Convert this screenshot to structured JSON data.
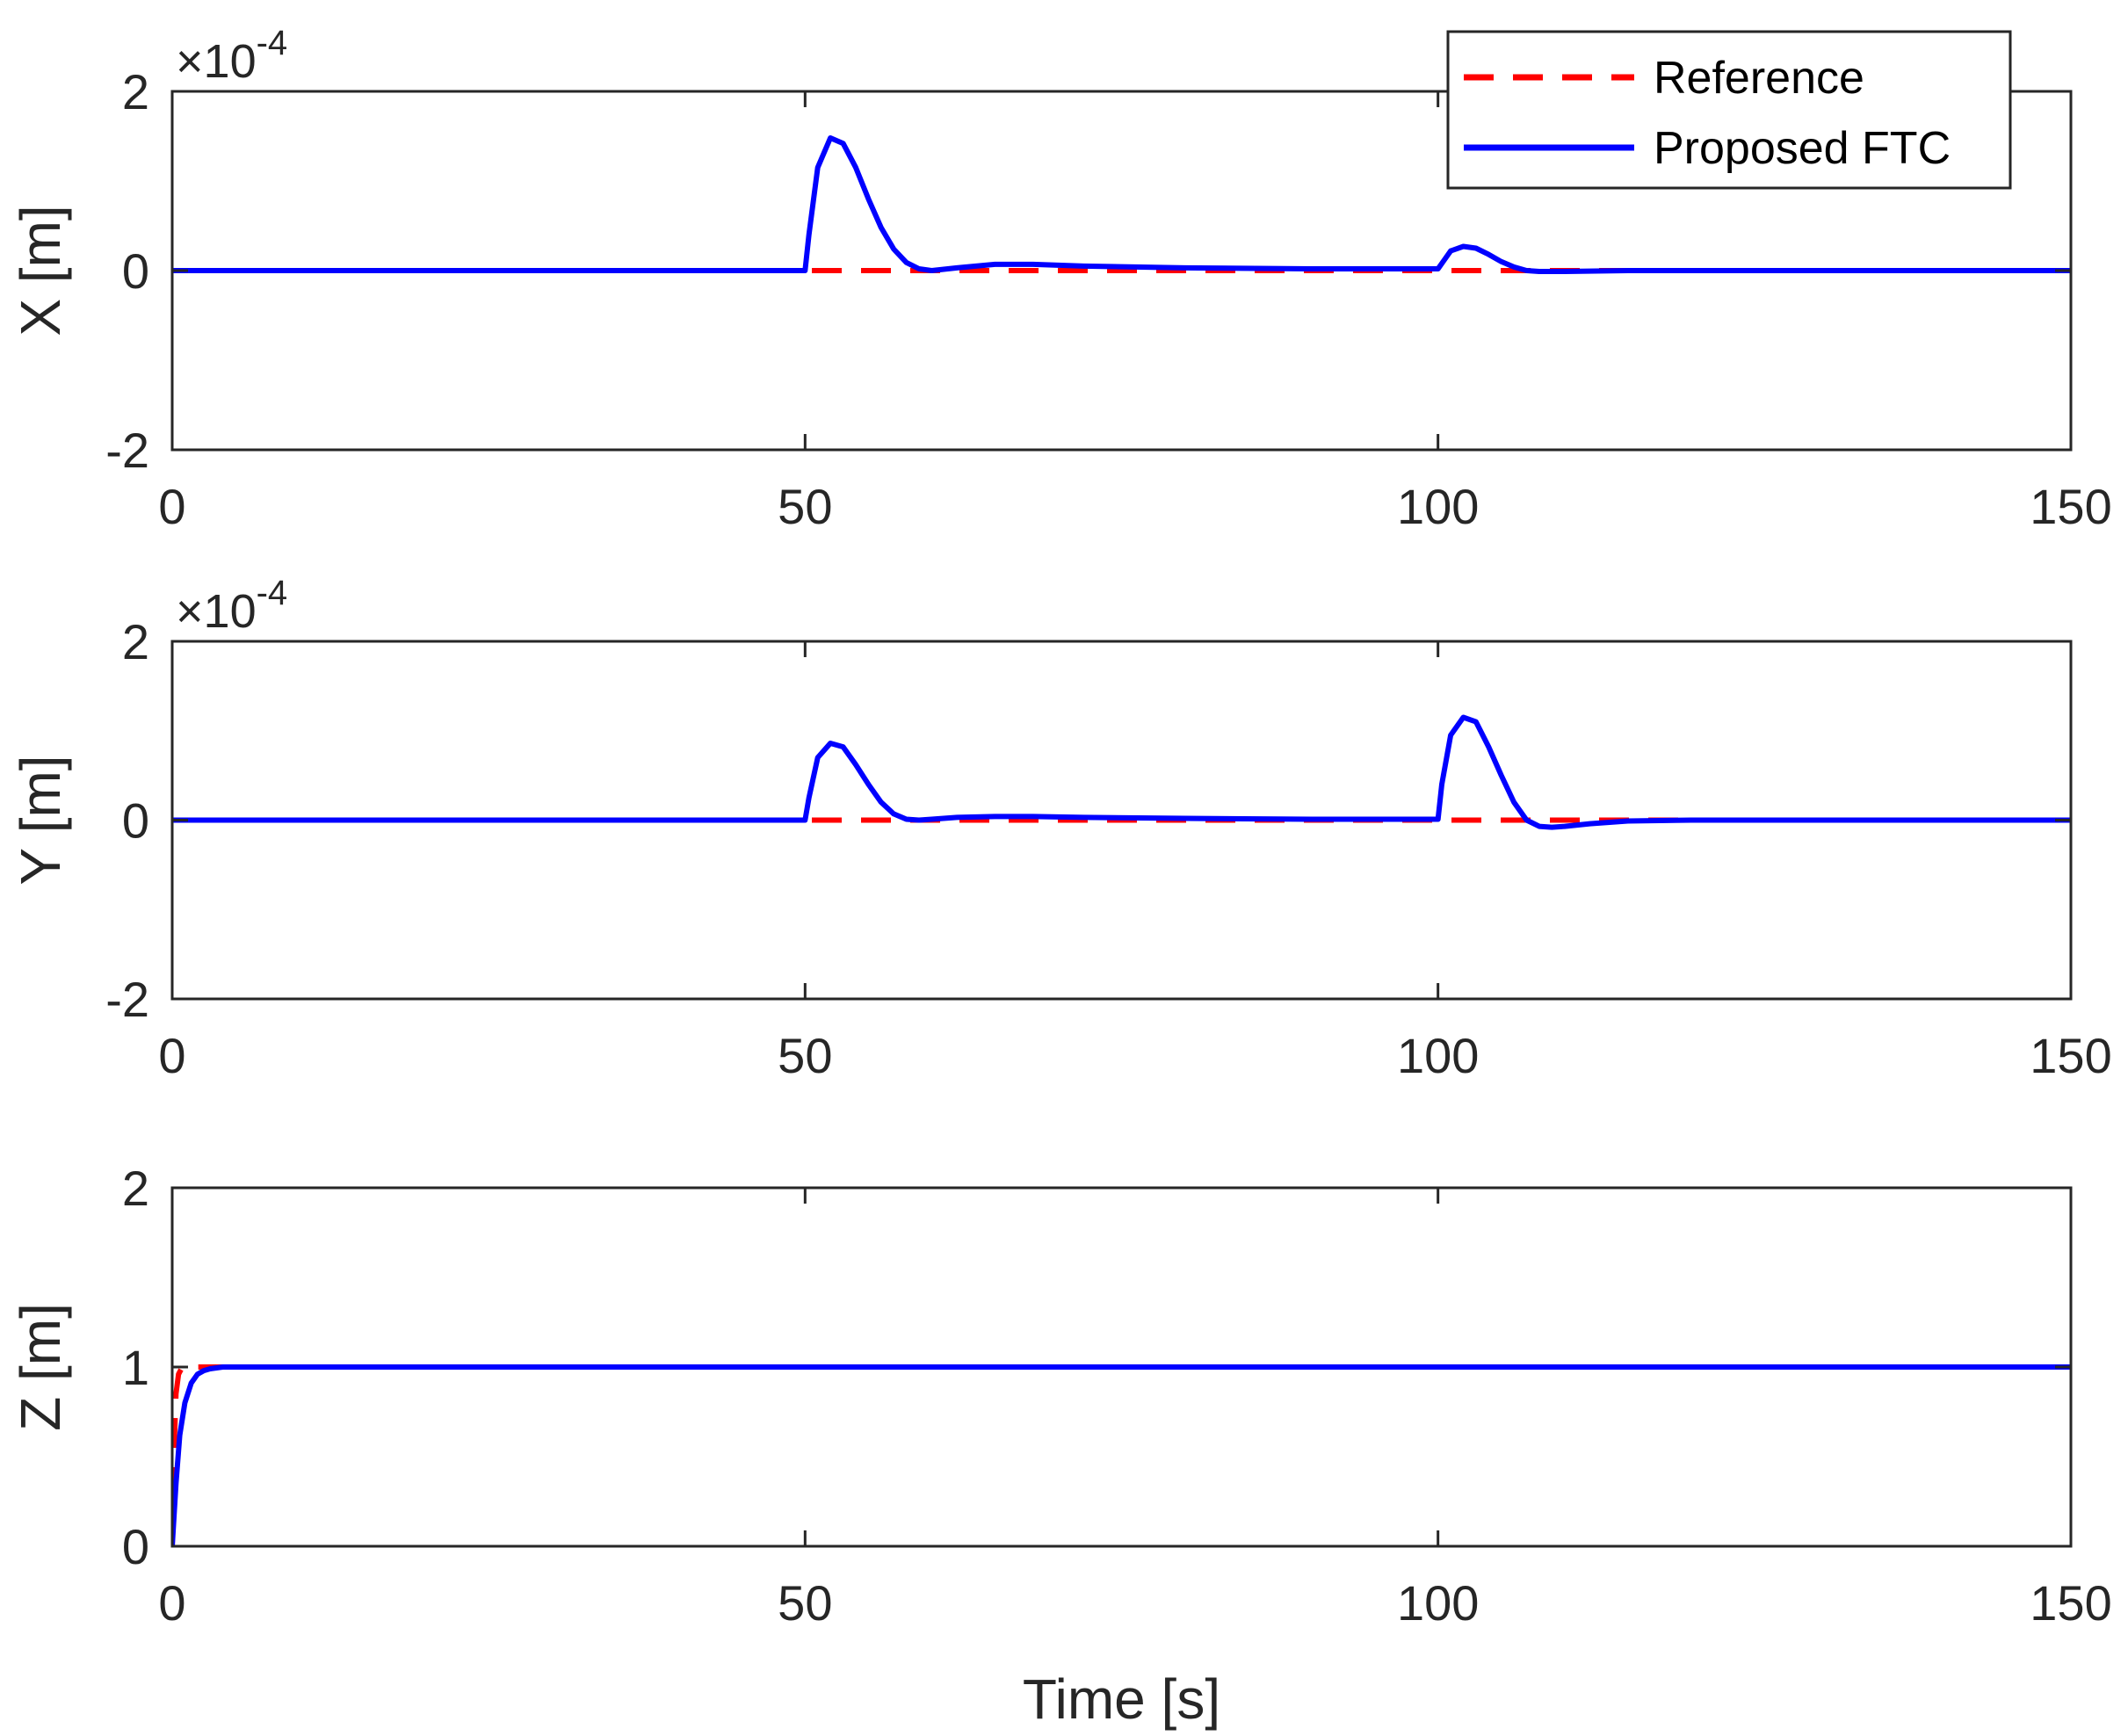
{
  "chart_data": [
    {
      "type": "line",
      "panel": "X",
      "ylabel": "X [m]",
      "xlabel": "",
      "xlim": [
        0,
        150
      ],
      "ylim": [
        -2,
        2
      ],
      "xticks": [
        "0",
        "50",
        "100",
        "150"
      ],
      "yticks": [
        "-2",
        "0",
        "2"
      ],
      "exponent": {
        "base": "×10",
        "power": "-4"
      },
      "grid": false,
      "series": [
        {
          "name": "Reference",
          "style": "dashed",
          "color": "#ff0000",
          "x": [
            0,
            150
          ],
          "y": [
            0,
            0
          ]
        },
        {
          "name": "Proposed FTC",
          "style": "solid",
          "color": "#0000ff",
          "x": [
            0,
            50,
            50.3,
            51,
            52,
            53,
            54,
            55,
            56,
            57,
            58,
            59,
            60,
            62,
            65,
            68,
            72,
            80,
            90,
            100,
            100.5,
            101,
            102,
            103,
            104,
            105,
            106,
            107,
            108,
            110,
            115,
            130,
            150
          ],
          "y": [
            0,
            0,
            0.4,
            1.15,
            1.48,
            1.42,
            1.15,
            0.8,
            0.48,
            0.24,
            0.09,
            0.02,
            0.0,
            0.03,
            0.07,
            0.07,
            0.05,
            0.03,
            0.02,
            0.02,
            0.12,
            0.22,
            0.27,
            0.25,
            0.18,
            0.1,
            0.04,
            0.0,
            -0.01,
            -0.01,
            0.0,
            0.0,
            0.0
          ]
        }
      ]
    },
    {
      "type": "line",
      "panel": "Y",
      "ylabel": "Y [m]",
      "xlabel": "",
      "xlim": [
        0,
        150
      ],
      "ylim": [
        -2,
        2
      ],
      "xticks": [
        "0",
        "50",
        "100",
        "150"
      ],
      "yticks": [
        "-2",
        "0",
        "2"
      ],
      "exponent": {
        "base": "×10",
        "power": "-4"
      },
      "grid": false,
      "series": [
        {
          "name": "Reference",
          "style": "dashed",
          "color": "#ff0000",
          "x": [
            0,
            150
          ],
          "y": [
            0,
            0
          ]
        },
        {
          "name": "Proposed FTC",
          "style": "solid",
          "color": "#0000ff",
          "x": [
            0,
            50,
            50.3,
            51,
            52,
            53,
            54,
            55,
            56,
            57,
            58,
            59,
            60,
            62,
            65,
            68,
            72,
            80,
            90,
            100,
            100.3,
            101,
            102,
            103,
            104,
            105,
            106,
            107,
            108,
            109,
            110,
            112,
            115,
            120,
            130,
            150
          ],
          "y": [
            0,
            0,
            0.25,
            0.7,
            0.86,
            0.82,
            0.62,
            0.4,
            0.2,
            0.07,
            0.01,
            0.0,
            0.01,
            0.03,
            0.04,
            0.04,
            0.03,
            0.02,
            0.01,
            0.01,
            0.4,
            0.95,
            1.15,
            1.1,
            0.82,
            0.5,
            0.2,
            0.0,
            -0.07,
            -0.08,
            -0.07,
            -0.04,
            -0.01,
            0.0,
            0.0,
            0.0
          ]
        }
      ]
    },
    {
      "type": "line",
      "panel": "Z",
      "ylabel": "Z [m]",
      "xlabel": "Time [s]",
      "xlim": [
        0,
        150
      ],
      "ylim": [
        0,
        2
      ],
      "xticks": [
        "0",
        "50",
        "100",
        "150"
      ],
      "yticks": [
        "0",
        "1",
        "2"
      ],
      "exponent": null,
      "grid": false,
      "series": [
        {
          "name": "Reference",
          "style": "dashed",
          "color": "#ff0000",
          "x": [
            0,
            0.15,
            0.3,
            0.5,
            0.8,
            1.2,
            2,
            150
          ],
          "y": [
            0,
            0.55,
            0.85,
            0.96,
            1.0,
            1.01,
            1.0,
            1.0
          ]
        },
        {
          "name": "Proposed FTC",
          "style": "solid",
          "color": "#0000ff",
          "x": [
            0,
            0.3,
            0.6,
            1.0,
            1.5,
            2.0,
            2.5,
            3.0,
            4.0,
            6.0,
            150
          ],
          "y": [
            0,
            0.35,
            0.62,
            0.8,
            0.91,
            0.96,
            0.98,
            0.99,
            1.0,
            1.0,
            1.0
          ]
        }
      ]
    }
  ],
  "legend": {
    "placement": "top-right",
    "entries": [
      {
        "label": "Reference",
        "color": "#ff0000",
        "style": "dashed"
      },
      {
        "label": "Proposed FTC",
        "color": "#0000ff",
        "style": "solid"
      }
    ]
  }
}
